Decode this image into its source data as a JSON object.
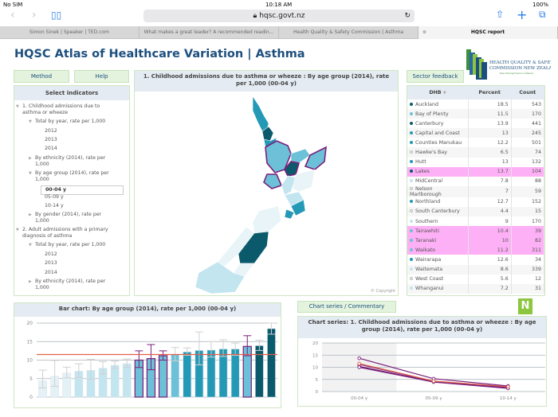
{
  "status": {
    "carrier": "No SIM",
    "time": "10:18 AM",
    "battery": "100%"
  },
  "browser": {
    "url": "hqsc.govt.nz",
    "tabs": [
      {
        "label": "Simon Sinek | Speaker | TED.com"
      },
      {
        "label": "What makes a great leader? A recommended readin..."
      },
      {
        "label": "Health Quality & Safety Commission | Asthma"
      },
      {
        "label": "HQSC report",
        "active": true
      }
    ]
  },
  "page": {
    "title": "HQSC Atlas of Healthcare Variation | Asthma",
    "logo_text": "HEALTH QUALITY & SAFETY COMMISSION NEW ZEALAND",
    "logo_sub": "Kupu Taurangi Hauora o Aotearoa"
  },
  "buttons": {
    "method": "Method",
    "help": "Help",
    "sector_feedback": "Sector feedback",
    "chart_series": "Chart series / Commentary"
  },
  "indicators": {
    "title": "Select indicators",
    "items": [
      {
        "label": "1. Childhood admissions due to asthma or wheeze",
        "level": 0,
        "state": "open"
      },
      {
        "label": "Total by year, rate per 1,000",
        "level": 1,
        "state": "open"
      },
      {
        "label": "2012",
        "level": 2
      },
      {
        "label": "2013",
        "level": 2
      },
      {
        "label": "2014",
        "level": 2
      },
      {
        "label": "By ethnicity (2014), rate per 1,000",
        "level": 1,
        "state": "closed"
      },
      {
        "label": "By age group (2014), rate per 1,000",
        "level": 1,
        "state": "open"
      },
      {
        "label": "00-04 y",
        "level": 2,
        "selected": true
      },
      {
        "label": "05-09 y",
        "level": 2
      },
      {
        "label": "10-14 y",
        "level": 2
      },
      {
        "label": "By gender (2014), rate per 1,000",
        "level": 1,
        "state": "closed"
      },
      {
        "label": "2. Adult admissions with a primary diagnosis of asthma",
        "level": 0,
        "state": "open"
      },
      {
        "label": "Total by year, rate per 1,000",
        "level": 1,
        "state": "open"
      },
      {
        "label": "2012",
        "level": 2
      },
      {
        "label": "2013",
        "level": 2
      },
      {
        "label": "2014",
        "level": 2
      },
      {
        "label": "By ethnicity (2014), rate per 1,000",
        "level": 1,
        "state": "closed"
      }
    ]
  },
  "map": {
    "title": "1. Childhood admissions due to asthma or wheeze :  By age group (2014), rate per 1,000 (00-04 y)",
    "copyright": "© Copyright"
  },
  "table": {
    "headers": [
      "DHB",
      "Percent",
      "Count"
    ],
    "rows": [
      {
        "dhb": "Auckland",
        "percent": "18.5",
        "count": "543",
        "tone": "dark"
      },
      {
        "dhb": "Bay of Plenty",
        "percent": "11.5",
        "count": "170",
        "tone": "mid2"
      },
      {
        "dhb": "Canterbury",
        "percent": "13.9",
        "count": "441",
        "tone": "dark"
      },
      {
        "dhb": "Capital and Coast",
        "percent": "13",
        "count": "245",
        "tone": "mid"
      },
      {
        "dhb": "Counties Manukau",
        "percent": "12.2",
        "count": "501",
        "tone": "mid"
      },
      {
        "dhb": "Hawke's Bay",
        "percent": "6.5",
        "count": "74",
        "tone": "white"
      },
      {
        "dhb": "Hutt",
        "percent": "13",
        "count": "132",
        "tone": "mid"
      },
      {
        "dhb": "Lakes",
        "percent": "13.7",
        "count": "104",
        "tone": "dark",
        "highlight": true
      },
      {
        "dhb": "MidCentral",
        "percent": "7.8",
        "count": "88",
        "tone": "light"
      },
      {
        "dhb": "Nelson Marlborough",
        "percent": "7",
        "count": "59",
        "tone": "white"
      },
      {
        "dhb": "Northland",
        "percent": "12.7",
        "count": "152",
        "tone": "mid"
      },
      {
        "dhb": "South Canterbury",
        "percent": "4.4",
        "count": "15",
        "tone": "white"
      },
      {
        "dhb": "Southern",
        "percent": "9",
        "count": "170",
        "tone": "light"
      },
      {
        "dhb": "Tairawhiti",
        "percent": "10.4",
        "count": "39",
        "tone": "mid2",
        "highlight": true
      },
      {
        "dhb": "Taranaki",
        "percent": "10",
        "count": "82",
        "tone": "mid2",
        "highlight": true
      },
      {
        "dhb": "Waikato",
        "percent": "11.2",
        "count": "311",
        "tone": "mid2",
        "highlight": true
      },
      {
        "dhb": "Wairarapa",
        "percent": "12.6",
        "count": "34",
        "tone": "mid"
      },
      {
        "dhb": "Waitemata",
        "percent": "8.6",
        "count": "339",
        "tone": "light"
      },
      {
        "dhb": "West Coast",
        "percent": "5.6",
        "count": "12",
        "tone": "white"
      },
      {
        "dhb": "Whanganui",
        "percent": "7.2",
        "count": "31",
        "tone": "light"
      }
    ]
  },
  "colors": {
    "dark": "#0a5a6c",
    "mid": "#2399b6",
    "mid2": "#6cc1d8",
    "light": "#c2e5ef",
    "white": "#e8f4f8",
    "highlight": "#7a1f7a",
    "average": "#e0604a"
  },
  "chart_data": [
    {
      "type": "bar",
      "title": "Bar chart: By age group (2014), rate per 1,000 (00-04 y)",
      "ylim": [
        0,
        20
      ],
      "yticks": [
        0,
        5,
        10,
        15,
        20
      ],
      "grid": true,
      "average": 11.5,
      "values": [
        4.4,
        5.6,
        6.5,
        7.0,
        7.2,
        7.8,
        8.6,
        9.0,
        10.0,
        10.4,
        11.2,
        11.5,
        12.2,
        12.6,
        12.7,
        13.0,
        13.0,
        13.7,
        13.9,
        18.5
      ],
      "ci_low": [
        2.5,
        2.9,
        5.2,
        5.3,
        4.8,
        6.3,
        7.8,
        8.0,
        8.0,
        7.4,
        10.0,
        9.8,
        11.3,
        8.7,
        10.8,
        11.0,
        11.3,
        11.2,
        12.6,
        17.0
      ],
      "ci_high": [
        7.3,
        9.9,
        8.1,
        9.0,
        10.2,
        9.6,
        9.7,
        10.3,
        12.5,
        14.2,
        12.5,
        13.4,
        13.3,
        17.6,
        15.0,
        15.5,
        14.6,
        16.6,
        15.4,
        20.0
      ],
      "highlighted": [
        false,
        false,
        false,
        false,
        false,
        false,
        false,
        false,
        true,
        true,
        true,
        false,
        false,
        false,
        false,
        false,
        false,
        true,
        false,
        false
      ]
    },
    {
      "type": "line",
      "title": "Chart series: 1. Childhood admissions due to asthma or wheeze :  By age group (2014), rate per 1,000 (00-04 y)",
      "categories": [
        "00-04 y",
        "05-09 y",
        "10-14 y"
      ],
      "ylim": [
        0,
        20
      ],
      "yticks": [
        0,
        5,
        10,
        15,
        20
      ],
      "grid": true,
      "highlighted_category": "00-04 y",
      "series": [
        {
          "values": [
            13.7,
            5.3,
            2.3
          ],
          "color": "#7a1f7a"
        },
        {
          "values": [
            11.2,
            4.2,
            1.6
          ],
          "color": "#7a1f7a"
        },
        {
          "values": [
            10.4,
            4.0,
            2.0
          ],
          "color": "#7a1f7a"
        },
        {
          "values": [
            10.0,
            3.9,
            1.3
          ],
          "color": "#7a1f7a"
        },
        {
          "values": [
            11.5,
            4.3,
            2.0
          ],
          "color": "#e0604a"
        }
      ]
    }
  ]
}
